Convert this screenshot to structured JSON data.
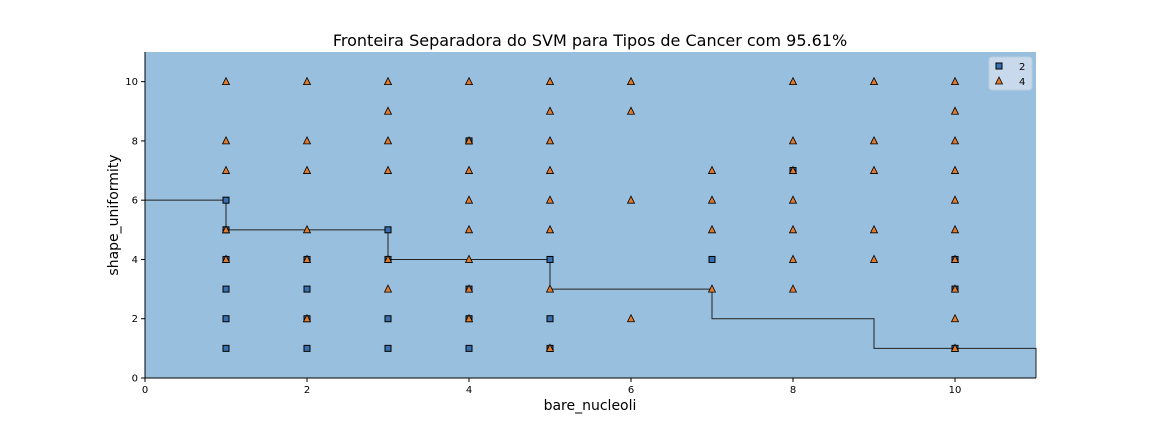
{
  "chart_data": {
    "type": "scatter",
    "title": "Fronteira Separadora do SVM para Tipos de Cancer com 95.61%",
    "xlabel": "bare_nucleoli",
    "ylabel": "shape_uniformity",
    "xlim": [
      0,
      11
    ],
    "ylim": [
      0,
      11
    ],
    "xticks": [
      "0",
      "2",
      "4",
      "6",
      "8",
      "10"
    ],
    "yticks": [
      "0",
      "2",
      "4",
      "6",
      "8",
      "10"
    ],
    "legend_position": "top-right",
    "colors": {
      "background": "#98bfdd",
      "class_2": "#3a6fae",
      "class_4": "#e07a2e",
      "boundary": "#222222"
    },
    "decision_boundary": [
      [
        0,
        6
      ],
      [
        1,
        6
      ],
      [
        1,
        5
      ],
      [
        3,
        5
      ],
      [
        3,
        4
      ],
      [
        5,
        4
      ],
      [
        5,
        3
      ],
      [
        7,
        3
      ],
      [
        7,
        2
      ],
      [
        9,
        2
      ],
      [
        9,
        1
      ],
      [
        11,
        1
      ],
      [
        11,
        0
      ]
    ],
    "series": [
      {
        "name": "2",
        "marker": "square",
        "points": [
          [
            1,
            1
          ],
          [
            1,
            2
          ],
          [
            1,
            3
          ],
          [
            1,
            4
          ],
          [
            1,
            5
          ],
          [
            1,
            6
          ],
          [
            2,
            1
          ],
          [
            2,
            2
          ],
          [
            2,
            3
          ],
          [
            2,
            4
          ],
          [
            3,
            1
          ],
          [
            3,
            2
          ],
          [
            3,
            4
          ],
          [
            3,
            5
          ],
          [
            4,
            1
          ],
          [
            4,
            2
          ],
          [
            4,
            3
          ],
          [
            4,
            8
          ],
          [
            5,
            1
          ],
          [
            5,
            2
          ],
          [
            5,
            4
          ],
          [
            7,
            4
          ],
          [
            8,
            7
          ],
          [
            10,
            1
          ],
          [
            10,
            3
          ],
          [
            10,
            4
          ]
        ]
      },
      {
        "name": "4",
        "marker": "triangle",
        "points": [
          [
            1,
            4
          ],
          [
            1,
            5
          ],
          [
            1,
            7
          ],
          [
            1,
            8
          ],
          [
            1,
            10
          ],
          [
            2,
            2
          ],
          [
            2,
            4
          ],
          [
            2,
            5
          ],
          [
            2,
            7
          ],
          [
            2,
            8
          ],
          [
            2,
            10
          ],
          [
            3,
            3
          ],
          [
            3,
            4
          ],
          [
            3,
            7
          ],
          [
            3,
            8
          ],
          [
            3,
            9
          ],
          [
            3,
            10
          ],
          [
            4,
            2
          ],
          [
            4,
            3
          ],
          [
            4,
            4
          ],
          [
            4,
            5
          ],
          [
            4,
            6
          ],
          [
            4,
            7
          ],
          [
            4,
            8
          ],
          [
            4,
            10
          ],
          [
            5,
            1
          ],
          [
            5,
            3
          ],
          [
            5,
            5
          ],
          [
            5,
            6
          ],
          [
            5,
            7
          ],
          [
            5,
            8
          ],
          [
            5,
            9
          ],
          [
            5,
            10
          ],
          [
            6,
            2
          ],
          [
            6,
            6
          ],
          [
            6,
            9
          ],
          [
            6,
            10
          ],
          [
            7,
            3
          ],
          [
            7,
            5
          ],
          [
            7,
            6
          ],
          [
            7,
            7
          ],
          [
            8,
            3
          ],
          [
            8,
            4
          ],
          [
            8,
            5
          ],
          [
            8,
            6
          ],
          [
            8,
            7
          ],
          [
            8,
            8
          ],
          [
            8,
            10
          ],
          [
            9,
            4
          ],
          [
            9,
            5
          ],
          [
            9,
            7
          ],
          [
            9,
            8
          ],
          [
            9,
            10
          ],
          [
            10,
            1
          ],
          [
            10,
            2
          ],
          [
            10,
            3
          ],
          [
            10,
            4
          ],
          [
            10,
            5
          ],
          [
            10,
            6
          ],
          [
            10,
            7
          ],
          [
            10,
            8
          ],
          [
            10,
            9
          ],
          [
            10,
            10
          ]
        ]
      }
    ]
  }
}
